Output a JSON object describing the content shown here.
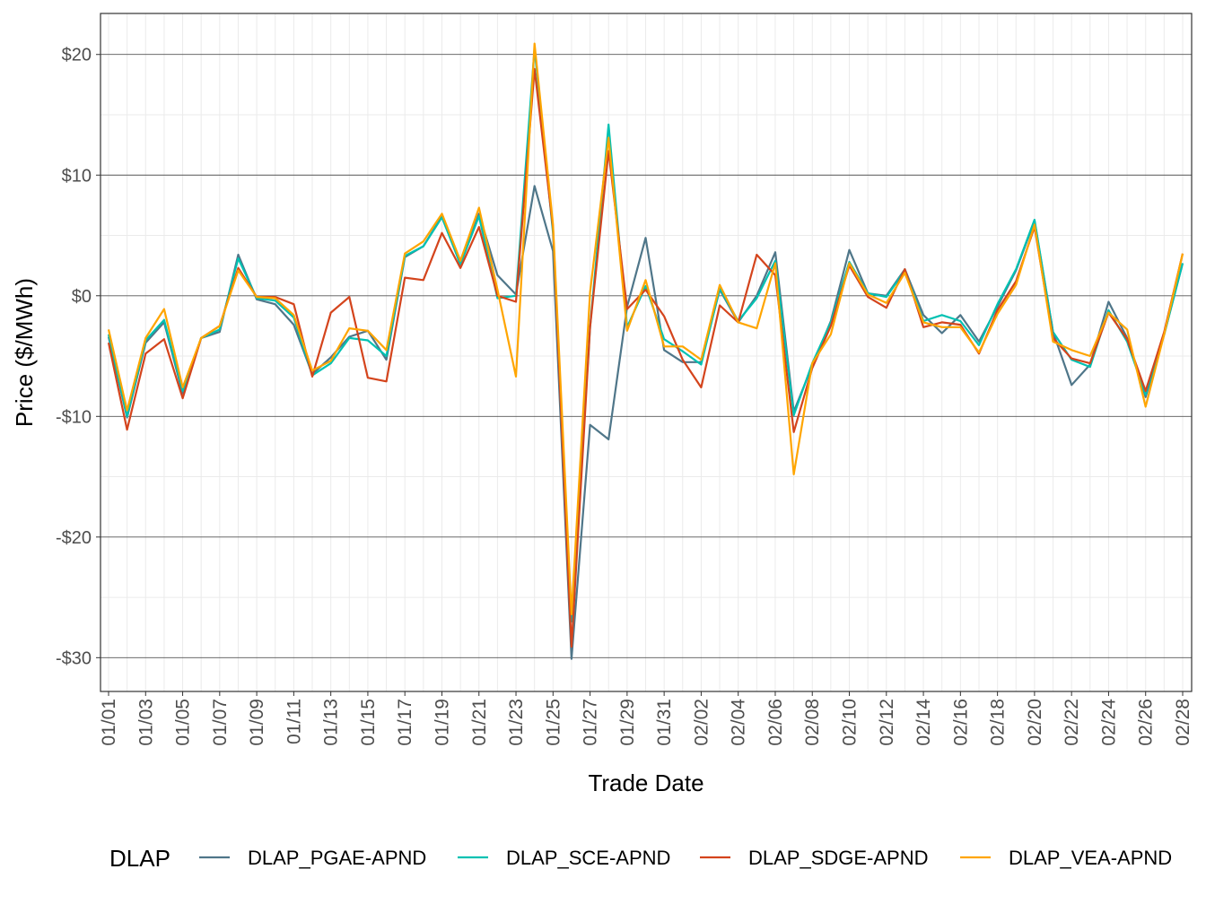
{
  "chart_data": {
    "type": "line",
    "title": "",
    "xlabel": "Trade Date",
    "ylabel": "Price ($/MWh)",
    "ylim": [
      -32.8,
      23.4
    ],
    "y_ticks": [
      20,
      10,
      0,
      -10,
      -20,
      -30
    ],
    "y_tick_labels": [
      "$20",
      "$10",
      "$0",
      "-$10",
      "-$20",
      "-$30"
    ],
    "grid": true,
    "legend_title": "DLAP",
    "legend_position": "bottom",
    "x": [
      "01/01",
      "01/02",
      "01/03",
      "01/04",
      "01/05",
      "01/06",
      "01/07",
      "01/08",
      "01/09",
      "01/10",
      "01/11",
      "01/12",
      "01/13",
      "01/14",
      "01/15",
      "01/16",
      "01/17",
      "01/18",
      "01/19",
      "01/20",
      "01/21",
      "01/22",
      "01/23",
      "01/24",
      "01/25",
      "01/26",
      "01/27",
      "01/28",
      "01/29",
      "01/30",
      "01/31",
      "02/01",
      "02/02",
      "02/03",
      "02/04",
      "02/05",
      "02/06",
      "02/07",
      "02/08",
      "02/09",
      "02/10",
      "02/11",
      "02/12",
      "02/13",
      "02/14",
      "02/15",
      "02/16",
      "02/17",
      "02/18",
      "02/19",
      "02/20",
      "02/21",
      "02/22",
      "02/23",
      "02/24",
      "02/25",
      "02/26",
      "02/27",
      "02/28"
    ],
    "x_tick_labels": [
      "01/01",
      "01/03",
      "01/05",
      "01/07",
      "01/09",
      "01/11",
      "01/13",
      "01/15",
      "01/17",
      "01/19",
      "01/21",
      "01/23",
      "01/25",
      "01/27",
      "01/29",
      "01/31",
      "02/02",
      "02/04",
      "02/06",
      "02/08",
      "02/10",
      "02/12",
      "02/14",
      "02/16",
      "02/18",
      "02/20",
      "02/22",
      "02/24",
      "02/26",
      "02/28"
    ],
    "series": [
      {
        "name": "DLAP_PGAE-APND",
        "color": "#4f7689",
        "values": [
          -3.4,
          -10.1,
          -3.9,
          -2.2,
          -8.1,
          -3.5,
          -3.0,
          3.4,
          -0.3,
          -0.7,
          -2.4,
          -6.5,
          -5.1,
          -3.4,
          -2.9,
          -5.3,
          3.2,
          4.1,
          6.6,
          2.6,
          6.8,
          1.7,
          0.1,
          9.1,
          3.7,
          -30.1,
          -10.7,
          -11.9,
          -0.9,
          4.8,
          -4.5,
          -5.5,
          -5.5,
          0.5,
          -2.2,
          0.0,
          3.6,
          -9.6,
          -5.8,
          -2.1,
          3.8,
          0.2,
          0.0,
          2.2,
          -1.6,
          -3.1,
          -1.6,
          -3.8,
          -0.9,
          2.1,
          6.2,
          -3.0,
          -7.4,
          -5.7,
          -0.5,
          -3.5,
          -8.4,
          -3.2,
          2.7
        ]
      },
      {
        "name": "DLAP_SCE-APND",
        "color": "#00c1b2",
        "values": [
          -3.2,
          -10.0,
          -3.7,
          -2.0,
          -7.9,
          -3.5,
          -2.8,
          3.1,
          -0.2,
          -0.4,
          -1.8,
          -6.6,
          -5.6,
          -3.5,
          -3.7,
          -5.0,
          3.3,
          4.1,
          6.5,
          2.6,
          6.6,
          -0.2,
          0.0,
          20.5,
          5.2,
          -27.0,
          -2.6,
          14.2,
          -2.6,
          0.8,
          -3.6,
          -4.6,
          -5.7,
          0.6,
          -2.1,
          -0.2,
          2.9,
          -9.9,
          -5.6,
          -2.2,
          2.8,
          0.2,
          -0.1,
          2.1,
          -2.1,
          -1.6,
          -2.1,
          -4.1,
          -0.7,
          2.2,
          6.3,
          -3.0,
          -5.3,
          -5.9,
          -1.2,
          -3.8,
          -8.2,
          -3.2,
          2.7
        ]
      },
      {
        "name": "DLAP_SDGE-APND",
        "color": "#d4441c",
        "values": [
          -3.9,
          -11.1,
          -4.8,
          -3.6,
          -8.5,
          -3.5,
          -2.5,
          2.3,
          -0.1,
          -0.1,
          -0.7,
          -6.7,
          -1.4,
          -0.1,
          -6.8,
          -7.1,
          1.5,
          1.3,
          5.2,
          2.3,
          5.7,
          0.0,
          -0.5,
          18.8,
          5.6,
          -29.1,
          -2.6,
          12.0,
          -1.1,
          0.5,
          -1.7,
          -5.3,
          -7.6,
          -0.8,
          -2.2,
          3.4,
          1.7,
          -11.3,
          -6.0,
          -2.5,
          2.5,
          -0.1,
          -1.0,
          2.2,
          -2.6,
          -2.2,
          -2.4,
          -4.8,
          -1.2,
          1.2,
          5.7,
          -3.5,
          -5.2,
          -5.6,
          -1.4,
          -3.6,
          -7.9,
          -3.0,
          3.5
        ]
      },
      {
        "name": "DLAP_VEA-APND",
        "color": "#ffa500",
        "values": [
          -2.8,
          -9.5,
          -3.5,
          -1.1,
          -7.6,
          -3.5,
          -2.5,
          2.1,
          -0.1,
          -0.2,
          -1.6,
          -6.2,
          -5.4,
          -2.7,
          -2.9,
          -4.5,
          3.5,
          4.5,
          6.8,
          2.9,
          7.3,
          0.5,
          -6.7,
          20.9,
          5.9,
          -26.4,
          0.3,
          13.1,
          -2.9,
          1.3,
          -4.2,
          -4.2,
          -5.3,
          0.9,
          -2.2,
          -2.7,
          2.7,
          -14.8,
          -5.6,
          -3.2,
          2.7,
          0.1,
          -0.6,
          1.9,
          -2.2,
          -2.6,
          -2.6,
          -4.7,
          -1.5,
          0.9,
          5.9,
          -3.8,
          -4.5,
          -5.0,
          -1.4,
          -2.8,
          -9.2,
          -3.2,
          3.5
        ]
      }
    ]
  }
}
